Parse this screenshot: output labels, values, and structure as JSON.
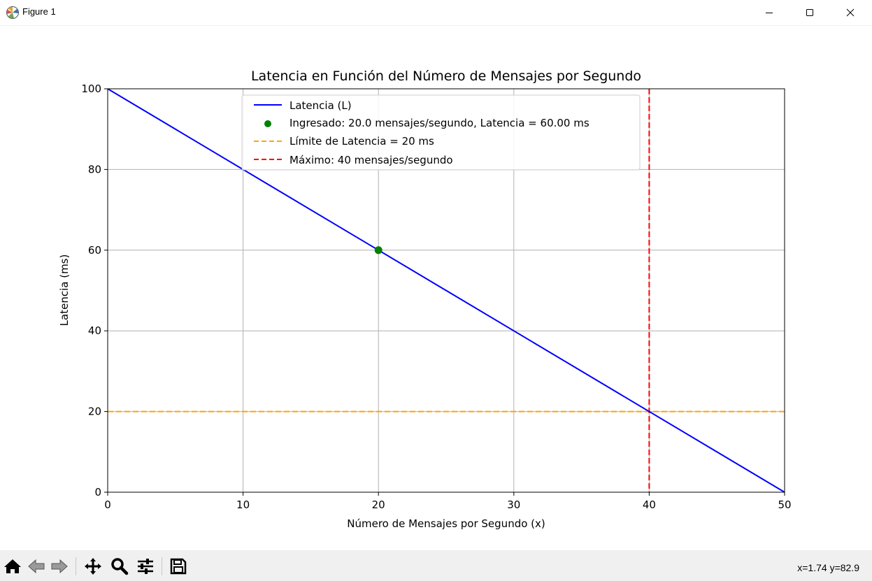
{
  "window": {
    "title": "Figure 1",
    "icons": [
      "matplotlib-logo-icon",
      "minimize-icon",
      "maximize-icon",
      "close-icon"
    ]
  },
  "toolbar": {
    "buttons": [
      "home-icon",
      "back-icon",
      "forward-icon",
      "pan-icon",
      "zoom-icon",
      "configure-subplots-icon",
      "save-icon"
    ],
    "coords": "x=1.74 y=82.9"
  },
  "colors": {
    "line": "#0000ff",
    "point": "#008000",
    "limit": "#ffa500",
    "max": "#ff0000",
    "grid": "#b0b0b0"
  },
  "chart_data": {
    "type": "line",
    "title": "Latencia en Función del Número de Mensajes por Segundo",
    "xlabel": "Número de Mensajes por Segundo (x)",
    "ylabel": "Latencia (ms)",
    "xlim": [
      0,
      50
    ],
    "ylim": [
      0,
      100
    ],
    "xticks": [
      0,
      10,
      20,
      30,
      40,
      50
    ],
    "yticks": [
      0,
      20,
      40,
      60,
      80,
      100
    ],
    "grid": true,
    "legend_position": "upper-center",
    "series": [
      {
        "name": "Latencia (L)",
        "kind": "line",
        "x": [
          0,
          50
        ],
        "y": [
          100,
          0
        ],
        "color": "#0000ff"
      },
      {
        "name": "Ingresado: 20.0 mensajes/segundo, Latencia = 60.00 ms",
        "kind": "point",
        "x": [
          20
        ],
        "y": [
          60
        ],
        "color": "#008000"
      },
      {
        "name": "Límite de Latencia = 20 ms",
        "kind": "hline",
        "y": 20,
        "color": "#ffa500"
      },
      {
        "name": "Máximo: 40 mensajes/segundo",
        "kind": "vline",
        "x": 40,
        "color": "#ff0000"
      }
    ]
  }
}
